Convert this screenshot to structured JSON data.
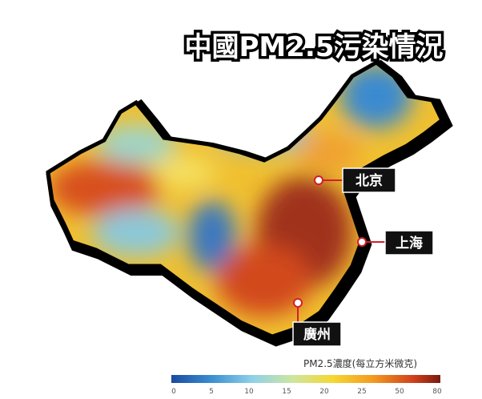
{
  "title": "中國PM2.5污染情況",
  "cities": [
    {
      "label": "北京"
    },
    {
      "label": "上海"
    },
    {
      "label": "廣州"
    }
  ],
  "legend": {
    "title": "PM2.5濃度(每立方米微克)",
    "ticks": [
      0,
      5,
      10,
      15,
      20,
      25,
      50,
      80
    ]
  }
}
